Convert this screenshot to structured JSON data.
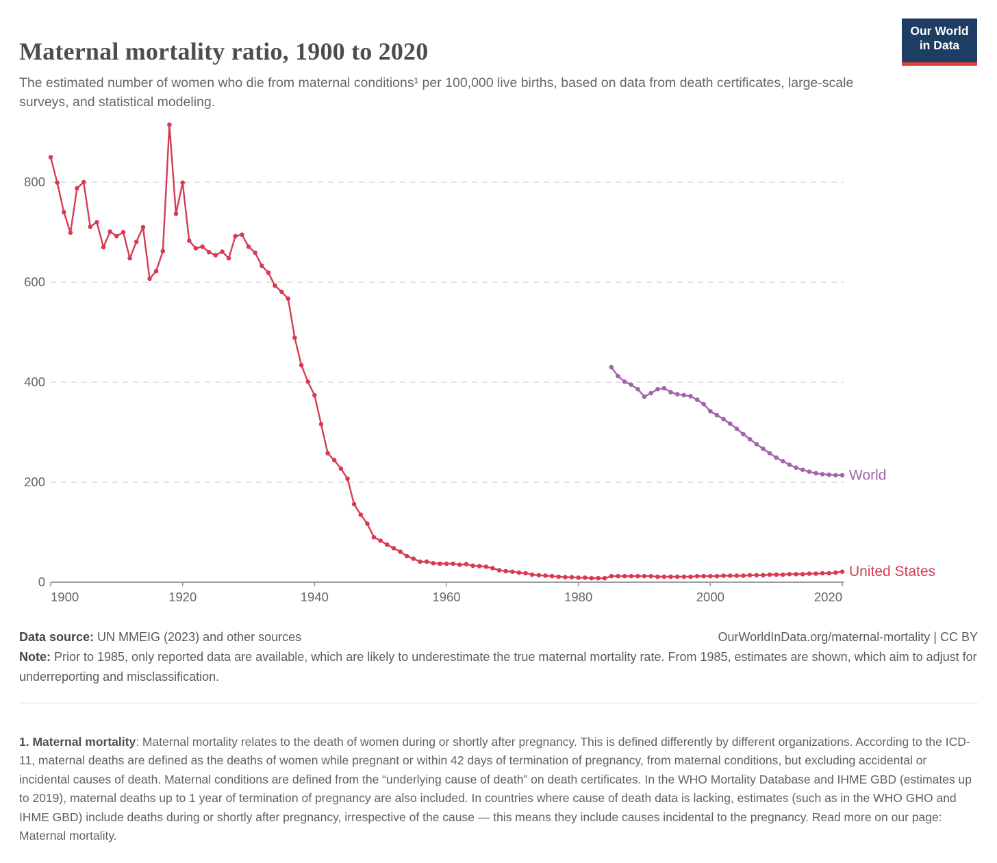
{
  "header": {
    "title": "Maternal mortality ratio, 1900 to 2020",
    "subtitle": "The estimated number of women who die from maternal conditions¹ per 100,000 live births, based on data from death certificates, large-scale surveys, and statistical modeling.",
    "logo": {
      "line1": "Our World",
      "line2": "in Data",
      "bg_color": "#1d3d63",
      "bar_color": "#e0403a"
    }
  },
  "chart_data": {
    "type": "line",
    "title": "Maternal mortality ratio, 1900 to 2020",
    "xlabel": "",
    "ylabel": "",
    "xlim": [
      1900,
      2020
    ],
    "ylim": [
      0,
      920
    ],
    "x_ticks": [
      1900,
      1920,
      1940,
      1960,
      1980,
      2000,
      2020
    ],
    "y_ticks": [
      0,
      200,
      400,
      600,
      800
    ],
    "grid": "horizontal-dashed",
    "legend_position": "line-end-labels",
    "series": [
      {
        "name": "United States",
        "color": "#d73a52",
        "start_year": 1900,
        "end_year": 2020,
        "annual_values": [
          850,
          799,
          740,
          699,
          788,
          800,
          711,
          720,
          670,
          701,
          692,
          700,
          648,
          681,
          710,
          607,
          622,
          662,
          915,
          737,
          799,
          683,
          668,
          671,
          660,
          654,
          661,
          648,
          692,
          695,
          671,
          659,
          633,
          619,
          593,
          581,
          567,
          489,
          434,
          401,
          374,
          316,
          258,
          244,
          227,
          207,
          156,
          135,
          117,
          90,
          83,
          75,
          68,
          61,
          52,
          47,
          41,
          41,
          38,
          37,
          37,
          37,
          35,
          36,
          33,
          32,
          31,
          28,
          24,
          22,
          21,
          19,
          18,
          15,
          14,
          13,
          12,
          11,
          10,
          10,
          9,
          9,
          8,
          8,
          8,
          12,
          12,
          12,
          12,
          12,
          12,
          12,
          11,
          11,
          11,
          11,
          11,
          11,
          12,
          12,
          12,
          12,
          13,
          13,
          13,
          13,
          14,
          14,
          14,
          15,
          15,
          15,
          16,
          16,
          16,
          17,
          17,
          18,
          18,
          19,
          21
        ]
      },
      {
        "name": "World",
        "color": "#a264ab",
        "start_year": 1985,
        "end_year": 2020,
        "annual_values": [
          430,
          412,
          401,
          395,
          386,
          371,
          378,
          386,
          388,
          380,
          376,
          374,
          372,
          365,
          356,
          342,
          334,
          326,
          317,
          307,
          296,
          286,
          276,
          267,
          258,
          249,
          242,
          235,
          229,
          225,
          221,
          218,
          216,
          215,
          214,
          214
        ]
      }
    ]
  },
  "footer": {
    "datasource_label": "Data source:",
    "datasource_text": " UN MMEIG (2023) and other sources",
    "url_text": "OurWorldInData.org/maternal-mortality | CC BY",
    "note_label": "Note:",
    "note_text": " Prior to 1985, only reported data are available, which are likely to underestimate the true maternal mortality rate. From 1985, estimates are shown, which aim to adjust for underreporting and misclassification."
  },
  "footnote": {
    "label": "1. Maternal mortality",
    "text": ": Maternal mortality relates to the death of women during or shortly after pregnancy. This is defined differently by different organizations. According to the ICD-11, maternal deaths are defined as the deaths of women while pregnant or within 42 days of termination of pregnancy, from maternal conditions, but excluding accidental or incidental causes of death. Maternal conditions are defined from the “underlying cause of death” on death certificates. In the WHO Mortality Database and IHME GBD (estimates up to 2019), maternal deaths up to 1 year of termination of pregnancy are also included. In countries where cause of death data is lacking, estimates (such as in the WHO GHO and IHME GBD) include deaths during or shortly after pregnancy, irrespective of the cause — this means they include causes incidental to the pregnancy. Read more on our page: Maternal mortality."
  },
  "colors": {
    "title_text": "#4d4d4d",
    "body_text": "#666666",
    "axis_text": "#666666",
    "axis_line": "#8f8f8f",
    "gridline": "#d9d9d9",
    "united_states": "#d73a52",
    "world": "#a264ab"
  }
}
